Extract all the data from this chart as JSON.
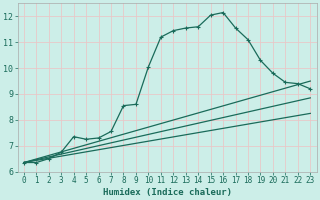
{
  "xlabel": "Humidex (Indice chaleur)",
  "bg_color": "#cceee8",
  "grid_color": "#e8c8c8",
  "line_color": "#1a6b5a",
  "xlim": [
    -0.5,
    23.5
  ],
  "ylim": [
    6,
    12.5
  ],
  "xticks": [
    0,
    1,
    2,
    3,
    4,
    5,
    6,
    7,
    8,
    9,
    10,
    11,
    12,
    13,
    14,
    15,
    16,
    17,
    18,
    19,
    20,
    21,
    22,
    23
  ],
  "yticks": [
    6,
    7,
    8,
    9,
    10,
    11,
    12
  ],
  "line1_x": [
    0,
    1,
    2,
    3,
    4,
    5,
    6,
    7,
    8,
    9,
    10,
    11,
    12,
    13,
    14,
    15,
    16,
    17,
    18,
    19,
    20,
    21,
    22,
    23
  ],
  "line1_y": [
    6.35,
    6.35,
    6.5,
    6.75,
    7.35,
    7.25,
    7.3,
    7.55,
    8.55,
    8.6,
    10.05,
    11.2,
    11.45,
    11.55,
    11.6,
    12.05,
    12.15,
    11.55,
    11.1,
    10.3,
    9.8,
    9.45,
    9.4,
    9.2
  ],
  "line2_x": [
    0,
    23
  ],
  "line2_y": [
    6.35,
    9.5
  ],
  "line3_x": [
    0,
    23
  ],
  "line3_y": [
    6.35,
    8.85
  ],
  "line4_x": [
    0,
    23
  ],
  "line4_y": [
    6.35,
    8.25
  ],
  "markersize": 3,
  "linewidth": 0.9
}
